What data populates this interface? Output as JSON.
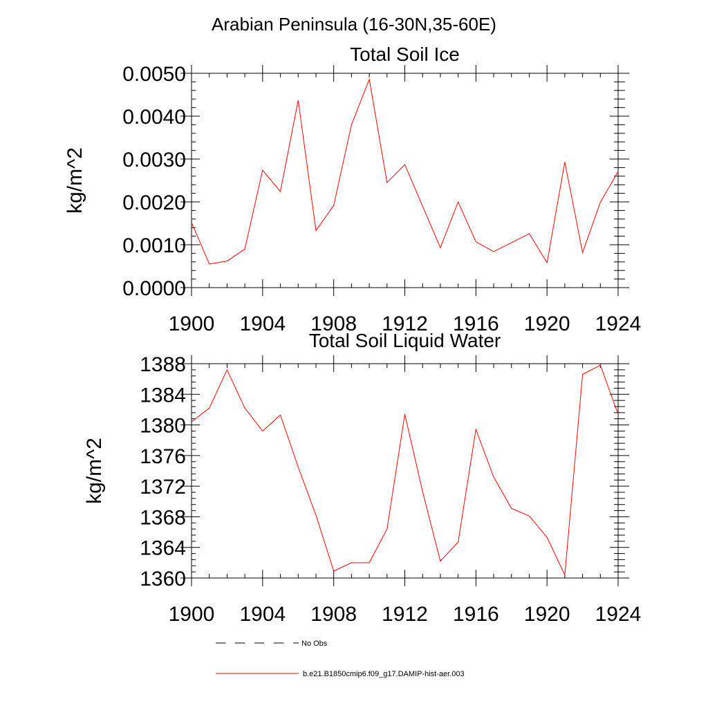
{
  "page": {
    "title": "Arabian Peninsula (16-30N,35-60E)"
  },
  "legend": {
    "items": [
      {
        "label": "No Obs",
        "style": "dashed",
        "color": "#000000"
      },
      {
        "label": "b.e21.B1850cmip6.f09_g17.DAMIP-hist-aer.003",
        "style": "solid",
        "color": "#ff0000"
      }
    ]
  },
  "chart_data": [
    {
      "type": "line",
      "title": "Total Soil Ice",
      "xlabel": "",
      "ylabel": "kg/m^2",
      "xlim": [
        1900,
        1924
      ],
      "ylim": [
        0,
        0.005
      ],
      "xticks": [
        1900,
        1904,
        1908,
        1912,
        1916,
        1920,
        1924
      ],
      "yticks": [
        0,
        0.001,
        0.002,
        0.003,
        0.004,
        0.005
      ],
      "ytick_labels": [
        "0.0000",
        "0.0010",
        "0.0020",
        "0.0030",
        "0.0040",
        "0.0050"
      ],
      "grid": false,
      "series": [
        {
          "color": "#ff0000",
          "x": [
            1900,
            1901,
            1902,
            1903,
            1904,
            1905,
            1906,
            1907,
            1908,
            1909,
            1910,
            1911,
            1912,
            1913,
            1914,
            1915,
            1916,
            1917,
            1918,
            1919,
            1920,
            1921,
            1922,
            1923,
            1924
          ],
          "y": [
            0.00152,
            0.00055,
            0.00062,
            0.0009,
            0.00274,
            0.00224,
            0.00437,
            0.00133,
            0.00192,
            0.0038,
            0.00486,
            0.00245,
            0.00287,
            0.0019,
            0.00093,
            0.002,
            0.00107,
            0.00084,
            0.00105,
            0.00126,
            0.00058,
            0.00293,
            0.00082,
            0.00199,
            0.00271
          ]
        }
      ]
    },
    {
      "type": "line",
      "title": "Total Soil Liquid Water",
      "xlabel": "",
      "ylabel": "kg/m^2",
      "xlim": [
        1900,
        1924
      ],
      "ylim": [
        1360,
        1388
      ],
      "xticks": [
        1900,
        1904,
        1908,
        1912,
        1916,
        1920,
        1924
      ],
      "yticks": [
        1360,
        1364,
        1368,
        1372,
        1376,
        1380,
        1384,
        1388
      ],
      "ytick_labels": [
        "1360",
        "1364",
        "1368",
        "1372",
        "1376",
        "1380",
        "1384",
        "1388"
      ],
      "grid": false,
      "series": [
        {
          "color": "#ff0000",
          "x": [
            1900,
            1901,
            1902,
            1903,
            1904,
            1905,
            1906,
            1907,
            1908,
            1909,
            1910,
            1911,
            1912,
            1913,
            1914,
            1915,
            1916,
            1917,
            1918,
            1919,
            1920,
            1921,
            1922,
            1923,
            1924
          ],
          "y": [
            1380.4,
            1382.2,
            1387.2,
            1382.2,
            1379.2,
            1381.3,
            1374.5,
            1368.2,
            1360.9,
            1362.0,
            1362.0,
            1366.4,
            1381.4,
            1371.3,
            1362.2,
            1364.7,
            1379.4,
            1373.2,
            1369.1,
            1368.1,
            1365.3,
            1360.4,
            1386.6,
            1387.8,
            1381.4
          ]
        }
      ]
    }
  ]
}
